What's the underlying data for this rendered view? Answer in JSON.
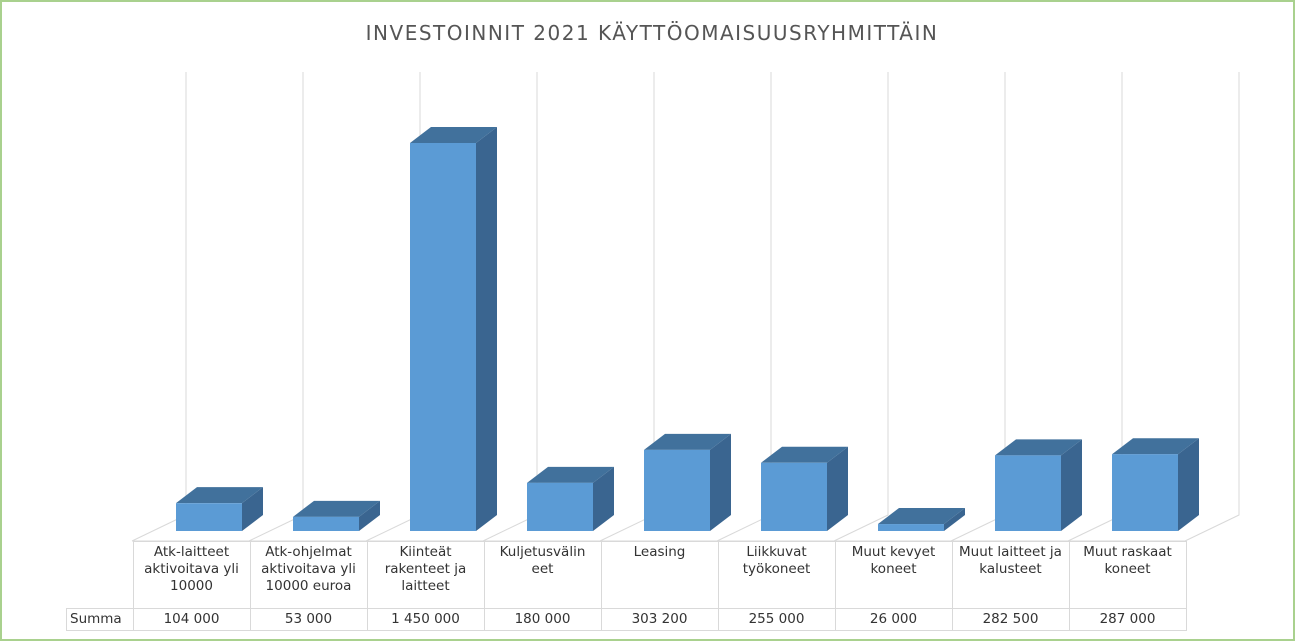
{
  "chart_data": {
    "type": "bar3d",
    "title": "INVESTOINNIT 2021  KÄYTTÖOMAISUUSRYHMITTÄIN",
    "categories": [
      "Atk-laitteet aktivoitava yli 10000",
      "Atk-ohjelmat aktivoitava yli 10000 euroa",
      "Kiinteät rakenteet ja laitteet",
      "Kuljetusvälin eet",
      "Leasing",
      "Liikkuvat työkoneet",
      "Muut kevyet koneet",
      "Muut laitteet ja kalusteet",
      "Muut raskaat koneet"
    ],
    "series": [
      {
        "name": "Summa",
        "color": "#5b9bd5",
        "values": [
          104000,
          53000,
          1450000,
          180000,
          303200,
          255000,
          26000,
          282500,
          287000
        ],
        "value_labels": [
          "104 000",
          "53 000",
          "1 450 000",
          "180 000",
          "303 200",
          "255 000",
          "26 000",
          "282 500",
          "287 000"
        ]
      }
    ]
  }
}
